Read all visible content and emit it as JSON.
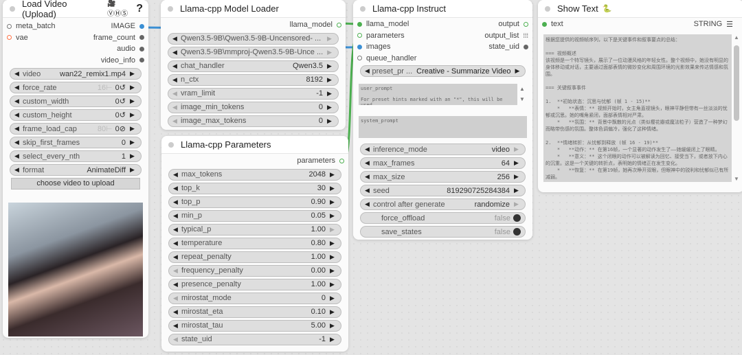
{
  "colors": {
    "image": "#3b8fd4",
    "model": "#4caf50",
    "vae": "#ff7043"
  },
  "load_video": {
    "title": "Load Video (Upload)",
    "badge": "🎥ⓋⒽⓈ",
    "help": "?",
    "io": [
      {
        "in": "meta_batch",
        "out": "IMAGE"
      },
      {
        "in": "vae",
        "out": "frame_count"
      },
      {
        "in": "",
        "out": "audio"
      },
      {
        "in": "",
        "out": "video_info"
      }
    ],
    "widgets": [
      {
        "label": "video",
        "value": "wan22_remix1.mp4"
      },
      {
        "label": "force_rate",
        "extra": "16⊢",
        "value": "0↺"
      },
      {
        "label": "custom_width",
        "value": "0↺"
      },
      {
        "label": "custom_height",
        "value": "0↺"
      },
      {
        "label": "frame_load_cap",
        "extra": "80⊢",
        "value": "0⊘"
      },
      {
        "label": "skip_first_frames",
        "value": "0"
      },
      {
        "label": "select_every_nth",
        "value": "1"
      },
      {
        "label": "format",
        "value": "AnimateDiff"
      }
    ],
    "upload_label": "choose video to upload"
  },
  "model_loader": {
    "title": "Llama-cpp Model Loader",
    "io": [
      {
        "in": "",
        "out": "llama_model"
      }
    ],
    "widgets": [
      {
        "label": "Qwen3.5-9B\\Qwen3.5-9B-Uncensored- ...",
        "value": "",
        "full": true,
        "dimright": true
      },
      {
        "label": "Qwen3.5-9B\\mmproj-Qwen3.5-9B-Unce ...",
        "value": "",
        "full": true,
        "dimright": true
      },
      {
        "label": "chat_handler",
        "value": "Qwen3.5"
      },
      {
        "label": "n_ctx",
        "value": "8192"
      },
      {
        "label": "vram_limit",
        "value": "-1",
        "dimleft": true
      },
      {
        "label": "image_min_tokens",
        "value": "0",
        "dimleft": true
      },
      {
        "label": "image_max_tokens",
        "value": "0",
        "dimleft": true
      }
    ]
  },
  "parameters": {
    "title": "Llama-cpp Parameters",
    "io": [
      {
        "in": "",
        "out": "parameters"
      }
    ],
    "widgets": [
      {
        "label": "max_tokens",
        "value": "2048"
      },
      {
        "label": "top_k",
        "value": "30"
      },
      {
        "label": "top_p",
        "value": "0.90"
      },
      {
        "label": "min_p",
        "value": "0.05"
      },
      {
        "label": "typical_p",
        "value": "1.00",
        "dimright": true
      },
      {
        "label": "temperature",
        "value": "0.80"
      },
      {
        "label": "repeat_penalty",
        "value": "1.00"
      },
      {
        "label": "frequency_penalty",
        "value": "0.00",
        "dimleft": true
      },
      {
        "label": "presence_penalty",
        "value": "1.00"
      },
      {
        "label": "mirostat_mode",
        "value": "0",
        "dimleft": true
      },
      {
        "label": "mirostat_eta",
        "value": "0.10"
      },
      {
        "label": "mirostat_tau",
        "value": "5.00"
      },
      {
        "label": "state_uid",
        "value": "-1",
        "dimleft": true
      }
    ]
  },
  "instruct": {
    "title": "Llama-cpp Instruct",
    "io": [
      {
        "in": "llama_model",
        "out": "output"
      },
      {
        "in": "parameters",
        "out": "output_list"
      },
      {
        "in": "images",
        "out": "state_uid"
      },
      {
        "in": "queue_handler",
        "out": ""
      }
    ],
    "preset": {
      "label": "preset_pr ...",
      "value": "Creative - Summarize Video"
    },
    "user_prompt": "user_prompt\n\nFor preset hints marked with an \"*\", this will be used",
    "system_prompt": "system_prompt",
    "widgets": [
      {
        "label": "inference_mode",
        "value": "video",
        "dimright": true
      },
      {
        "label": "max_frames",
        "value": "64"
      },
      {
        "label": "max_size",
        "value": "256"
      },
      {
        "label": "seed",
        "value": "819290725284384"
      },
      {
        "label": "control after generate",
        "value": "randomize",
        "dimright": true
      },
      {
        "label": "force_offload",
        "value": "false",
        "toggle": true
      },
      {
        "label": "save_states",
        "value": "false",
        "toggle": true
      }
    ]
  },
  "show_text": {
    "title": "Show Text",
    "badge": "🐍",
    "io": [
      {
        "in": "text",
        "out": "STRING"
      }
    ],
    "text": "根据您提供的视频帧序列，以下是关键事件和叙事要点的总结：\n\n=== 视频概述\n该视频是一个特写镜头，展示了一位动漫风格的年轻女性。整个视频中，她没有明显的身体移动或对话，主要通过面部表情的微妙变化和周围环境的光影效果来传达情感和氛围。\n\n=== 关键叙事事件\n\n1.  **初始状态：沉思与忧郁 (帧 1 - 15)**\n    *   **表情：** 视频开始时，女主角直视镜头，眼神平静但带有一丝淡淡的忧郁或沉思。她的嘴角紧闭，面部表情相对严肃。\n    *   **氛围：** 背景中飘散的光点（类似樱花瓣或魔法粒子）营造了一种梦幻而略带伤感的氛围。整体色调偏冷，强化了这种情绪。\n\n2.  **情绪转折：从忧郁到释放 (帧 16 - 19)**\n    *   **动作：** 在第16帧，一个显著的动作发生了——她缓缓闭上了眼睛。\n    *   **意义：** 这个闭眼的动作可以被解读为回忆、接受当下，或者放下内心的沉重。这是一个关键的转折点，表明她的情绪正在发生变化。\n    *   **恢复：** 在第19帧，她再次睁开双眼，但眼神中的锐利和忧郁似已有所减弱。"
  }
}
